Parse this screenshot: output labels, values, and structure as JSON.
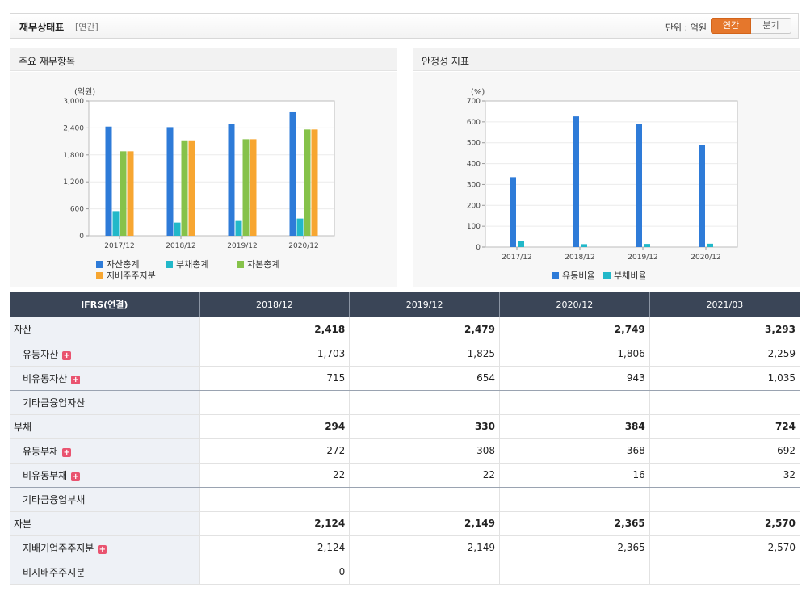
{
  "header": {
    "title": "재무상태표",
    "subtitle": "[연간]",
    "unit_label": "단위 : 억원",
    "toggle_annual": "연간",
    "toggle_quarter": "분기"
  },
  "panels": {
    "left_title": "주요 재무항목",
    "right_title": "안정성 지표"
  },
  "colors": {
    "blue": "#2e7bd8",
    "teal": "#22b8c9",
    "green": "#86c24a",
    "orange": "#f7a631",
    "active_toggle": "#e5772c",
    "table_header": "#3a4557"
  },
  "chart_data": [
    {
      "type": "bar",
      "unit": "(억원)",
      "categories": [
        "2017/12",
        "2018/12",
        "2019/12",
        "2020/12"
      ],
      "ylim": [
        0,
        3000
      ],
      "yticks": [
        "3,000",
        "2,400",
        "1,800",
        "1,200",
        "600",
        "0"
      ],
      "ytick_values": [
        3000,
        2400,
        1800,
        1200,
        600,
        0
      ],
      "series": [
        {
          "name": "자산총계",
          "values": [
            2430,
            2418,
            2479,
            2749
          ]
        },
        {
          "name": "부채총계",
          "values": [
            550,
            294,
            330,
            384
          ]
        },
        {
          "name": "자본총계",
          "values": [
            1880,
            2124,
            2149,
            2365
          ]
        },
        {
          "name": "지배주주지분",
          "values": [
            1880,
            2124,
            2149,
            2365
          ]
        }
      ],
      "legend_position": "bottom-left"
    },
    {
      "type": "bar",
      "unit": "(%)",
      "categories": [
        "2017/12",
        "2018/12",
        "2019/12",
        "2020/12"
      ],
      "ylim": [
        0,
        700
      ],
      "yticks": [
        "700",
        "600",
        "500",
        "400",
        "300",
        "200",
        "100",
        "0"
      ],
      "ytick_values": [
        700,
        600,
        500,
        400,
        300,
        200,
        100,
        0
      ],
      "series": [
        {
          "name": "유동비율",
          "values": [
            335,
            626,
            591,
            491
          ]
        },
        {
          "name": "부채비율",
          "values": [
            29,
            14,
            15,
            16
          ]
        }
      ],
      "legend_position": "bottom-center"
    }
  ],
  "table": {
    "header_label": "IFRS(연결)",
    "columns": [
      "2018/12",
      "2019/12",
      "2020/12",
      "2021/03"
    ],
    "rows": [
      {
        "label": "자산",
        "values": [
          "2,418",
          "2,479",
          "2,749",
          "3,293"
        ]
      },
      {
        "label": "유동자산",
        "values": [
          "1,703",
          "1,825",
          "1,806",
          "2,259"
        ]
      },
      {
        "label": "비유동자산",
        "values": [
          "715",
          "654",
          "943",
          "1,035"
        ]
      },
      {
        "label": "기타금융업자산",
        "values": [
          "",
          "",
          "",
          ""
        ]
      },
      {
        "label": "부채",
        "values": [
          "294",
          "330",
          "384",
          "724"
        ]
      },
      {
        "label": "유동부채",
        "values": [
          "272",
          "308",
          "368",
          "692"
        ]
      },
      {
        "label": "비유동부채",
        "values": [
          "22",
          "22",
          "16",
          "32"
        ]
      },
      {
        "label": "기타금융업부채",
        "values": [
          "",
          "",
          "",
          ""
        ]
      },
      {
        "label": "자본",
        "values": [
          "2,124",
          "2,149",
          "2,365",
          "2,570"
        ]
      },
      {
        "label": "지배기업주주지분",
        "values": [
          "2,124",
          "2,149",
          "2,365",
          "2,570"
        ]
      },
      {
        "label": "비지배주주지분",
        "values": [
          "0",
          "",
          "",
          ""
        ]
      }
    ]
  }
}
